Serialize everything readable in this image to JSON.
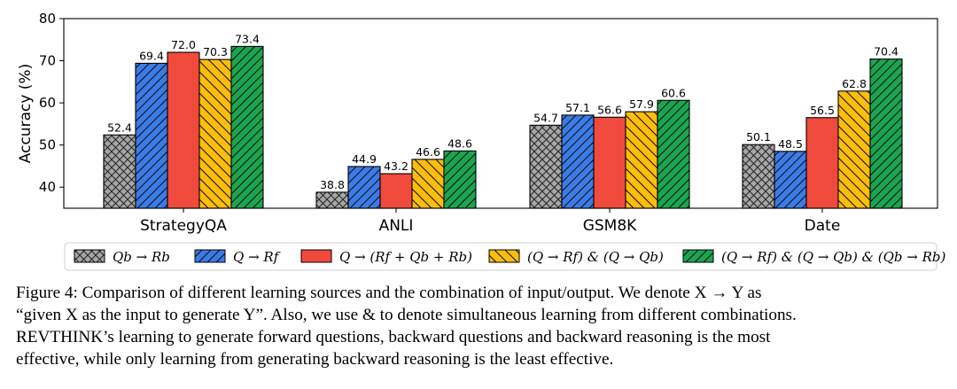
{
  "chart_data": {
    "type": "bar",
    "categories": [
      "StrategyQA",
      "ANLI",
      "GSM8K",
      "Date"
    ],
    "series": [
      {
        "name": "Qb → Rb",
        "values": [
          52.4,
          38.8,
          54.7,
          50.1
        ],
        "color": "#a6a6a6",
        "hatch": "crosshatch"
      },
      {
        "name": "Q → Rf",
        "values": [
          69.4,
          44.9,
          57.1,
          48.5
        ],
        "color": "#3b7be8",
        "hatch": "diag"
      },
      {
        "name": "Q → (Rf + Qb + Rb)",
        "values": [
          72.0,
          43.2,
          56.6,
          56.5
        ],
        "color": "#ef4a3c",
        "hatch": "none"
      },
      {
        "name": "(Q → Rf) & (Q → Qb)",
        "values": [
          70.3,
          46.6,
          57.9,
          62.8
        ],
        "color": "#fcbd0b",
        "hatch": "backdiag"
      },
      {
        "name": "(Q → Rf) & (Q → Qb) & (Qb → Rb)",
        "values": [
          73.4,
          48.6,
          60.6,
          70.4
        ],
        "color": "#1aa650",
        "hatch": "diag"
      }
    ],
    "value_labels": [
      [
        "52.4",
        "38.8",
        "54.7",
        "50.1"
      ],
      [
        "69.4",
        "44.9",
        "57.1",
        "48.5"
      ],
      [
        "72.0",
        "43.2",
        "56.6",
        "56.5"
      ],
      [
        "70.3",
        "46.6",
        "57.9",
        "62.8"
      ],
      [
        "73.4",
        "48.6",
        "60.6",
        "70.4"
      ]
    ],
    "ylabel": "Accuracy (%)",
    "ylim": [
      35,
      80
    ],
    "yticks": [
      40,
      50,
      60,
      70,
      80
    ],
    "ytick_labels": [
      "40",
      "50",
      "60",
      "70",
      "80"
    ],
    "grid": false,
    "legend_position": "bottom"
  },
  "caption": {
    "lines": [
      "Figure 4: Comparison of different learning sources and the combination of input/output. We denote X → Y as",
      "“given X as the input to generate Y”. Also, we use & to denote simultaneous learning from different combinations.",
      "REVTHINK’s learning to generate forward questions, backward questions and backward reasoning is the most",
      "effective, while only learning from generating backward reasoning is the least effective."
    ]
  }
}
